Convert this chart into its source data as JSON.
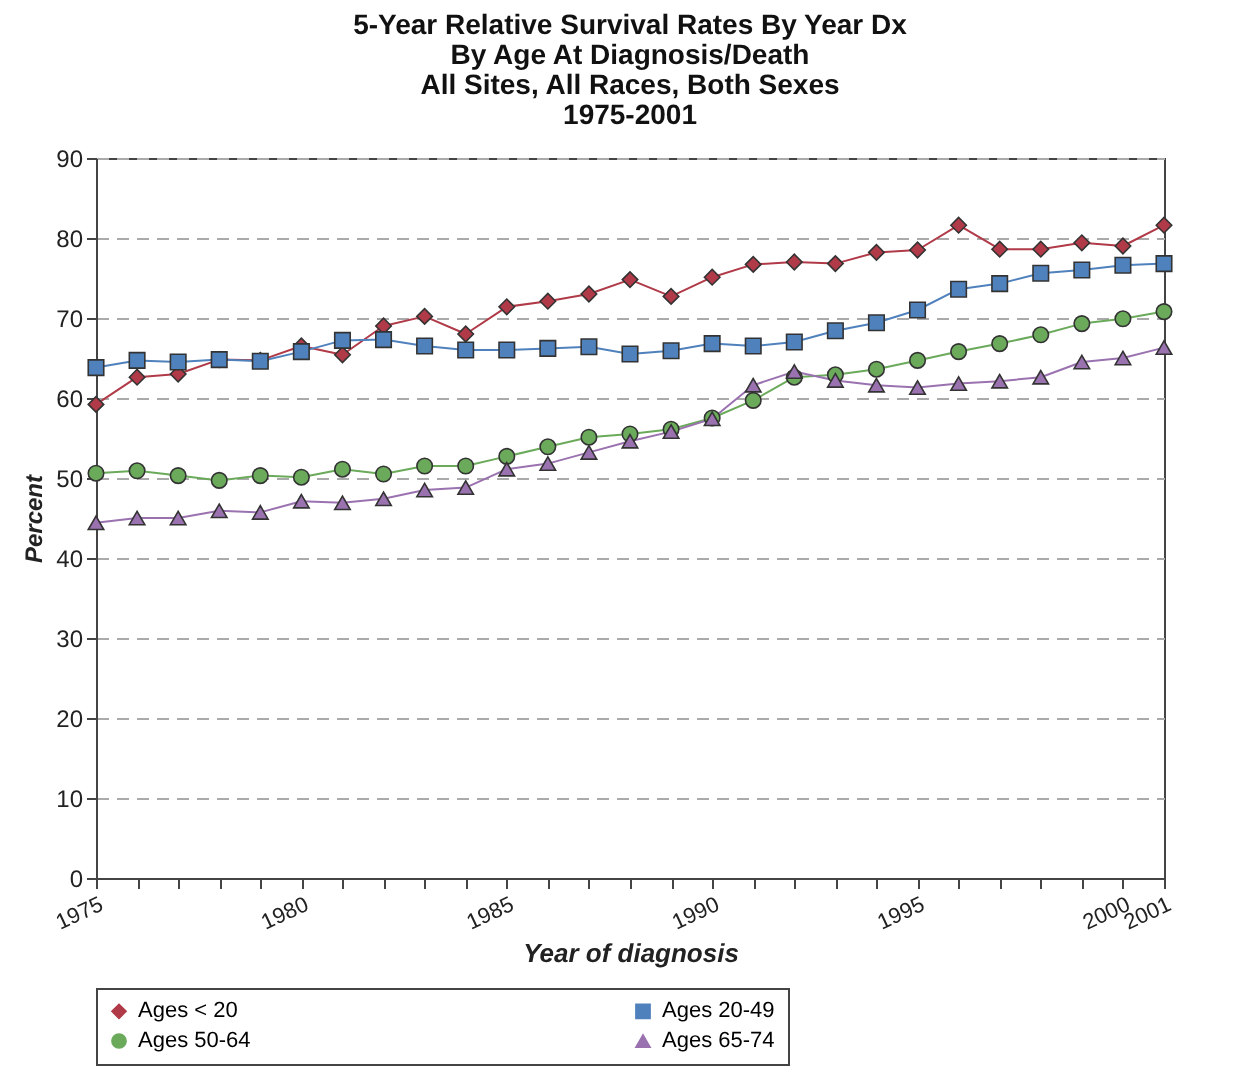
{
  "chart_data": {
    "type": "line",
    "title": "5-Year Relative Survival Rates By Year Dx\nBy Age At Diagnosis/Death\nAll Sites, All Races, Both Sexes\n1975-2001",
    "xlabel": "Year of diagnosis",
    "ylabel": "Percent",
    "x": [
      1975,
      1976,
      1977,
      1978,
      1979,
      1980,
      1981,
      1982,
      1983,
      1984,
      1985,
      1986,
      1987,
      1988,
      1989,
      1990,
      1991,
      1992,
      1993,
      1994,
      1995,
      1996,
      1997,
      1998,
      1999,
      2000,
      2001
    ],
    "series": [
      {
        "name": "Ages < 20",
        "color": "#b03a48",
        "marker": "diamond",
        "values": [
          59.2,
          62.6,
          63,
          64.8,
          64.7,
          66.5,
          65.4,
          69,
          70.2,
          68,
          71.4,
          72.1,
          73,
          74.8,
          72.7,
          75.1,
          76.7,
          77,
          76.8,
          78.2,
          78.5,
          81.6,
          78.6,
          78.6,
          79.4,
          79,
          81.6
        ]
      },
      {
        "name": "Ages 20-49",
        "color": "#4f81bd",
        "marker": "square",
        "values": [
          63.8,
          64.7,
          64.5,
          64.8,
          64.6,
          65.8,
          67.2,
          67.3,
          66.5,
          66,
          66,
          66.2,
          66.4,
          65.5,
          65.9,
          66.8,
          66.5,
          67,
          68.4,
          69.4,
          71,
          73.6,
          74.3,
          75.6,
          76,
          76.6,
          76.8
        ]
      },
      {
        "name": "Ages 50-64",
        "color": "#6aaa5a",
        "marker": "circle",
        "values": [
          50.6,
          50.9,
          50.3,
          49.7,
          50.3,
          50.1,
          51.1,
          50.5,
          51.5,
          51.5,
          52.7,
          53.9,
          55.1,
          55.5,
          56.1,
          57.5,
          59.7,
          62.6,
          62.9,
          63.6,
          64.7,
          65.8,
          66.8,
          67.9,
          69.3,
          69.9,
          70.8
        ]
      },
      {
        "name": "Ages 65-74",
        "color": "#9a72b0",
        "marker": "triangle",
        "values": [
          44.4,
          45,
          45,
          45.9,
          45.7,
          47.1,
          46.9,
          47.4,
          48.5,
          48.8,
          51.1,
          51.8,
          53.2,
          54.6,
          55.8,
          57.4,
          61.6,
          63.3,
          62.2,
          61.6,
          61.3,
          61.8,
          62.1,
          62.6,
          64.5,
          65,
          66.3
        ]
      }
    ],
    "xlim": [
      1975,
      2001
    ],
    "ylim": [
      0,
      90
    ],
    "xticks": [
      1975,
      {
        "value": 1976,
        "label": null
      },
      {
        "value": 1977,
        "label": null
      },
      {
        "value": 1978,
        "label": null
      },
      {
        "value": 1979,
        "label": null
      },
      1980,
      {
        "value": 1981,
        "label": null
      },
      {
        "value": 1982,
        "label": null
      },
      {
        "value": 1983,
        "label": null
      },
      {
        "value": 1984,
        "label": null
      },
      1985,
      {
        "value": 1986,
        "label": null
      },
      {
        "value": 1987,
        "label": null
      },
      {
        "value": 1988,
        "label": null
      },
      {
        "value": 1989,
        "label": null
      },
      1990,
      {
        "value": 1991,
        "label": null
      },
      {
        "value": 1992,
        "label": null
      },
      {
        "value": 1993,
        "label": null
      },
      {
        "value": 1994,
        "label": null
      },
      1995,
      {
        "value": 1996,
        "label": null
      },
      {
        "value": 1997,
        "label": null
      },
      {
        "value": 1998,
        "label": null
      },
      {
        "value": 1999,
        "label": null
      },
      2000,
      2001
    ],
    "yticks": [
      0,
      10,
      20,
      30,
      40,
      50,
      60,
      70,
      80,
      90
    ],
    "grid": "y",
    "legend": "bottom"
  }
}
